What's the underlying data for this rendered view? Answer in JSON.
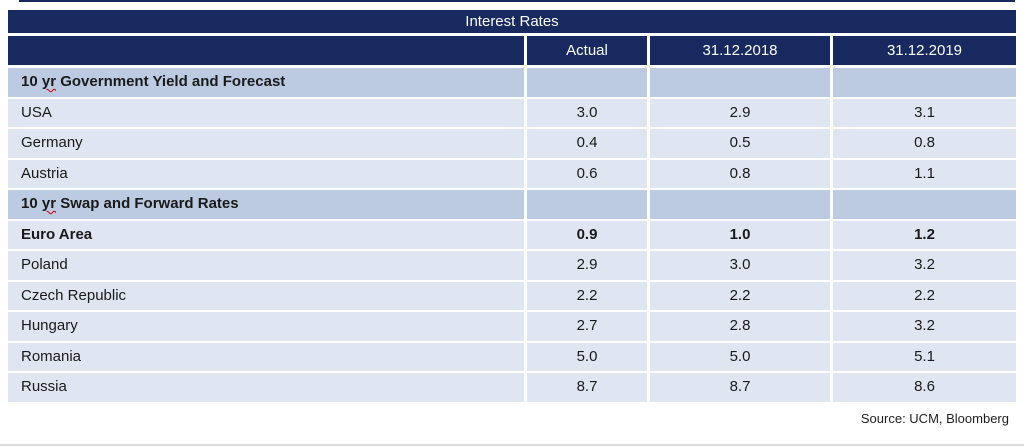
{
  "page": {
    "title_bar": "Interest Rates",
    "source_note": "Source: UCM, Bloomberg"
  },
  "colors": {
    "header_navy": "#17295e",
    "section_row_bg": "#bdcbe2",
    "data_row_bg": "#dfe5f1",
    "spellcheck_underline_red": "#c00000"
  },
  "table": {
    "columns": [
      "",
      "Actual",
      "31.12.2018",
      "31.12.2019"
    ],
    "rows": [
      {
        "type": "section",
        "label_pre": "10 ",
        "label_misspelled": "yr",
        "label_post": " Government Yield and Forecast",
        "values": [
          "",
          "",
          ""
        ]
      },
      {
        "type": "data",
        "label": "USA",
        "values": [
          "3.0",
          "2.9",
          "3.1"
        ]
      },
      {
        "type": "data",
        "label": "Germany",
        "values": [
          "0.4",
          "0.5",
          "0.8"
        ]
      },
      {
        "type": "data",
        "label": "Austria",
        "values": [
          "0.6",
          "0.8",
          "1.1"
        ]
      },
      {
        "type": "section",
        "label_pre": "10 ",
        "label_misspelled": "yr",
        "label_post": " Swap and Forward Rates",
        "values": [
          "",
          "",
          ""
        ]
      },
      {
        "type": "data-bold",
        "label": "Euro Area",
        "values": [
          "0.9",
          "1.0",
          "1.2"
        ]
      },
      {
        "type": "data",
        "label": "Poland",
        "values": [
          "2.9",
          "3.0",
          "3.2"
        ]
      },
      {
        "type": "data",
        "label": "Czech Republic",
        "values": [
          "2.2",
          "2.2",
          "2.2"
        ]
      },
      {
        "type": "data",
        "label": "Hungary",
        "values": [
          "2.7",
          "2.8",
          "3.2"
        ]
      },
      {
        "type": "data",
        "label": "Romania",
        "values": [
          "5.0",
          "5.0",
          "5.1"
        ]
      },
      {
        "type": "data",
        "label": "Russia",
        "values": [
          "8.7",
          "8.7",
          "8.6"
        ]
      }
    ]
  },
  "chart_data": {
    "type": "table",
    "title": "Interest Rates",
    "columns": [
      "",
      "Actual",
      "31.12.2018",
      "31.12.2019"
    ],
    "rows": [
      [
        "10 yr Government Yield and Forecast",
        "",
        "",
        ""
      ],
      [
        "USA",
        3.0,
        2.9,
        3.1
      ],
      [
        "Germany",
        0.4,
        0.5,
        0.8
      ],
      [
        "Austria",
        0.6,
        0.8,
        1.1
      ],
      [
        "10 yr Swap and Forward Rates",
        "",
        "",
        ""
      ],
      [
        "Euro Area",
        0.9,
        1.0,
        1.2
      ],
      [
        "Poland",
        2.9,
        3.0,
        3.2
      ],
      [
        "Czech Republic",
        2.2,
        2.2,
        2.2
      ],
      [
        "Hungary",
        2.7,
        2.8,
        3.2
      ],
      [
        "Romania",
        5.0,
        5.0,
        5.1
      ],
      [
        "Russia",
        8.7,
        8.7,
        8.6
      ]
    ],
    "bold_rows": [
      "10 yr Government Yield and Forecast",
      "10 yr Swap and Forward Rates",
      "Euro Area"
    ],
    "source": "Source: UCM, Bloomberg"
  }
}
